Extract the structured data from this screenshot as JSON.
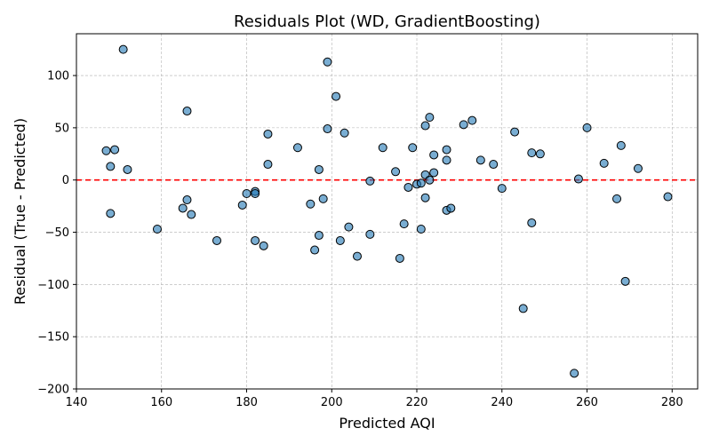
{
  "chart_data": {
    "type": "scatter",
    "title": "Residuals Plot (WD, GradientBoosting)",
    "xlabel": "Predicted AQI",
    "ylabel": "Residual (True - Predicted)",
    "xlim": [
      140,
      286
    ],
    "ylim": [
      -200,
      140
    ],
    "xticks": [
      140,
      160,
      180,
      200,
      220,
      240,
      260,
      280
    ],
    "yticks": [
      -200,
      -150,
      -100,
      -50,
      0,
      50,
      100
    ],
    "grid": true,
    "reference_line": {
      "y": 0,
      "style": "dashed",
      "color": "#ff0000"
    },
    "colors": {
      "point_fill": "#1f77b4",
      "point_edge": "#000000",
      "grid": "#b0b0b0"
    },
    "points": [
      {
        "x": 151,
        "y": 125
      },
      {
        "x": 147,
        "y": 28
      },
      {
        "x": 149,
        "y": 29
      },
      {
        "x": 148,
        "y": 13
      },
      {
        "x": 152,
        "y": 10
      },
      {
        "x": 148,
        "y": -32
      },
      {
        "x": 159,
        "y": -47
      },
      {
        "x": 166,
        "y": 66
      },
      {
        "x": 165,
        "y": -27
      },
      {
        "x": 166,
        "y": -19
      },
      {
        "x": 167,
        "y": -33
      },
      {
        "x": 173,
        "y": -58
      },
      {
        "x": 179,
        "y": -24
      },
      {
        "x": 180,
        "y": -13
      },
      {
        "x": 182,
        "y": -11
      },
      {
        "x": 182,
        "y": -13
      },
      {
        "x": 182,
        "y": -58
      },
      {
        "x": 184,
        "y": -63
      },
      {
        "x": 185,
        "y": 44
      },
      {
        "x": 185,
        "y": 15
      },
      {
        "x": 192,
        "y": 31
      },
      {
        "x": 195,
        "y": -23
      },
      {
        "x": 196,
        "y": -67
      },
      {
        "x": 197,
        "y": 10
      },
      {
        "x": 197,
        "y": -53
      },
      {
        "x": 198,
        "y": -18
      },
      {
        "x": 199,
        "y": 113
      },
      {
        "x": 199,
        "y": 49
      },
      {
        "x": 201,
        "y": 80
      },
      {
        "x": 203,
        "y": 45
      },
      {
        "x": 202,
        "y": -58
      },
      {
        "x": 204,
        "y": -45
      },
      {
        "x": 206,
        "y": -73
      },
      {
        "x": 209,
        "y": -1
      },
      {
        "x": 209,
        "y": -52
      },
      {
        "x": 212,
        "y": 31
      },
      {
        "x": 215,
        "y": 8
      },
      {
        "x": 217,
        "y": -42
      },
      {
        "x": 216,
        "y": -75
      },
      {
        "x": 218,
        "y": -7
      },
      {
        "x": 219,
        "y": 31
      },
      {
        "x": 220,
        "y": -4
      },
      {
        "x": 221,
        "y": -3
      },
      {
        "x": 221,
        "y": -47
      },
      {
        "x": 222,
        "y": 52
      },
      {
        "x": 223,
        "y": 60
      },
      {
        "x": 222,
        "y": 5
      },
      {
        "x": 223,
        "y": 0
      },
      {
        "x": 222,
        "y": -17
      },
      {
        "x": 224,
        "y": 24
      },
      {
        "x": 224,
        "y": 7
      },
      {
        "x": 227,
        "y": 19
      },
      {
        "x": 227,
        "y": 29
      },
      {
        "x": 227,
        "y": -29
      },
      {
        "x": 228,
        "y": -27
      },
      {
        "x": 231,
        "y": 53
      },
      {
        "x": 233,
        "y": 57
      },
      {
        "x": 235,
        "y": 19
      },
      {
        "x": 238,
        "y": 15
      },
      {
        "x": 240,
        "y": -8
      },
      {
        "x": 243,
        "y": 46
      },
      {
        "x": 245,
        "y": -123
      },
      {
        "x": 247,
        "y": 26
      },
      {
        "x": 247,
        "y": -41
      },
      {
        "x": 249,
        "y": 25
      },
      {
        "x": 257,
        "y": -185
      },
      {
        "x": 258,
        "y": 1
      },
      {
        "x": 260,
        "y": 50
      },
      {
        "x": 264,
        "y": 16
      },
      {
        "x": 267,
        "y": -18
      },
      {
        "x": 268,
        "y": 33
      },
      {
        "x": 269,
        "y": -97
      },
      {
        "x": 272,
        "y": 11
      },
      {
        "x": 279,
        "y": -16
      }
    ]
  }
}
